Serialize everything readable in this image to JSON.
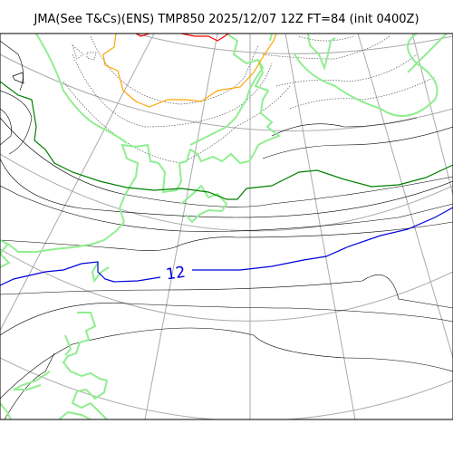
{
  "title": "JMA(See T&Cs)(ENS) TMP850 2025/12/07 12Z FT=84 (init 0400Z)",
  "contour_labels": [
    "12"
  ],
  "colors": {
    "grid": "#aaaaaa",
    "coast": "#90ee90",
    "isotherm_black": "#000000",
    "isotherm_dotted": "#555555",
    "isotherm_green": "#008000",
    "isotherm_blue": "#0000dd",
    "isotherm_orange": "#ffa500",
    "isotherm_red": "#ff0000"
  }
}
